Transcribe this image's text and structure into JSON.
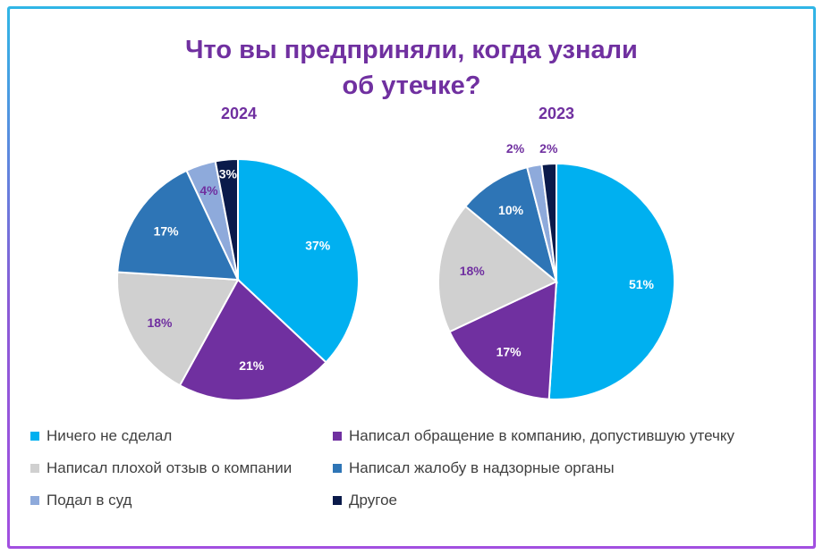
{
  "chart_data": [
    {
      "type": "pie",
      "title": "Что вы предприняли, когда узнали об утечке?",
      "subtitle": "2024",
      "categories": [
        "Ничего не сделал",
        "Написал обращение в компанию, допустившую утечку",
        "Написал плохой отзыв о компании",
        "Написал жалобу в надзорные органы",
        "Подал в суд",
        "Другое"
      ],
      "values": [
        37,
        21,
        18,
        17,
        4,
        3
      ],
      "labels": [
        "37%",
        "21%",
        "18%",
        "17%",
        "4%",
        "3%"
      ],
      "unit": "%"
    },
    {
      "type": "pie",
      "title": "Что вы предприняли, когда узнали об утечке?",
      "subtitle": "2023",
      "categories": [
        "Ничего не сделал",
        "Написал обращение в компанию, допустившую утечку",
        "Написал плохой отзыв о компании",
        "Написал жалобу в надзорные органы",
        "Подал в суд",
        "Другое"
      ],
      "values": [
        51,
        17,
        18,
        10,
        2,
        2
      ],
      "labels": [
        "51%",
        "17%",
        "18%",
        "10%",
        "2%",
        "2%"
      ],
      "unit": "%"
    }
  ],
  "title_line1": "Что вы предприняли, когда узнали",
  "title_line2": "об утечке?",
  "year_left": "2024",
  "year_right": "2023",
  "colors": [
    "#00b0f0",
    "#7030a0",
    "#d0d0d0",
    "#2e75b6",
    "#8eaadb",
    "#0a1a4a"
  ],
  "label_colors": [
    "#ffffff",
    "#ffffff",
    "#7030a0",
    "#ffffff",
    "#7030a0",
    "#ffffff"
  ],
  "label_colors_2023": [
    "#ffffff",
    "#ffffff",
    "#7030a0",
    "#ffffff",
    "#7030a0",
    "#7030a0"
  ],
  "legend": [
    {
      "label": "Ничего не сделал"
    },
    {
      "label": "Написал обращение в компанию, допустившую утечку"
    },
    {
      "label": "Написал плохой отзыв о компании"
    },
    {
      "label": "Написал жалобу в надзорные органы"
    },
    {
      "label": "Подал в суд"
    },
    {
      "label": "Другое"
    }
  ]
}
